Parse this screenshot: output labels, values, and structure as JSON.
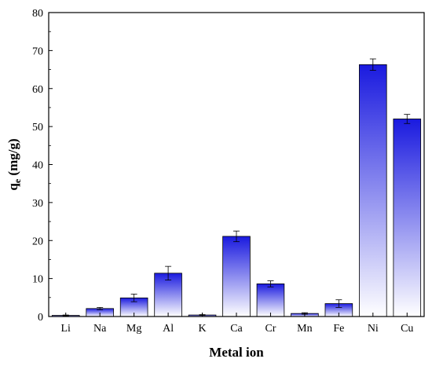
{
  "chart_data": {
    "type": "bar",
    "title": "",
    "xlabel": "Metal ion",
    "ylabel": {
      "main": "q",
      "subscript": "e",
      "rest": " (mg/g)"
    },
    "categories": [
      "Li",
      "Na",
      "Mg",
      "Al",
      "K",
      "Ca",
      "Cr",
      "Mn",
      "Fe",
      "Ni",
      "Cu"
    ],
    "values": [
      0.3,
      2.1,
      4.9,
      11.4,
      0.4,
      21.1,
      8.6,
      0.8,
      3.4,
      66.3,
      52.0
    ],
    "errors": [
      0.1,
      0.3,
      1.0,
      1.8,
      0.1,
      1.4,
      0.8,
      0.2,
      1.0,
      1.5,
      1.2
    ],
    "ylim": [
      0,
      80
    ],
    "yticks": [
      0,
      10,
      20,
      30,
      40,
      50,
      60,
      70,
      80
    ],
    "grid": false,
    "legend": "none",
    "colors": {
      "bar_top": "#1a1adf",
      "bar_bottom": "#ffffff",
      "bar_edge": "#000000"
    }
  }
}
